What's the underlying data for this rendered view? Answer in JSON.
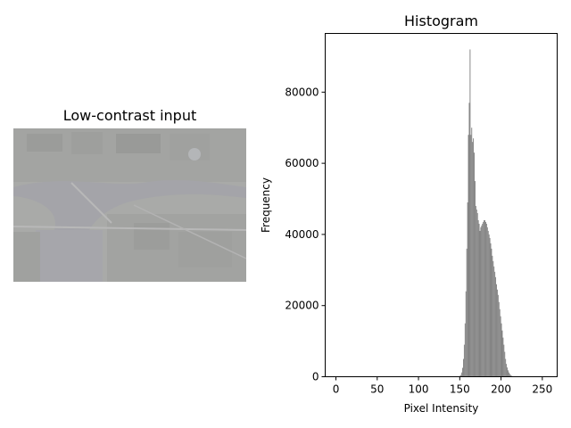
{
  "figure": {
    "left_panel": {
      "title": "Low-contrast input"
    },
    "right_panel": {
      "title": "Histogram"
    }
  },
  "chart_data": {
    "type": "bar",
    "title": "Histogram",
    "xlabel": "Pixel Intensity",
    "ylabel": "Frequency",
    "xlim": [
      -13,
      268
    ],
    "ylim": [
      0,
      96500
    ],
    "xticks": [
      0,
      50,
      100,
      150,
      200,
      250
    ],
    "yticks": [
      0,
      20000,
      40000,
      60000,
      80000
    ],
    "grid": false,
    "bar_color": "#808080",
    "bins": [
      [
        150,
        300
      ],
      [
        151,
        500
      ],
      [
        152,
        1200
      ],
      [
        153,
        2500
      ],
      [
        154,
        5000
      ],
      [
        155,
        9000
      ],
      [
        156,
        15000
      ],
      [
        157,
        24000
      ],
      [
        158,
        36000
      ],
      [
        159,
        49000
      ],
      [
        160,
        68000
      ],
      [
        161,
        77000
      ],
      [
        162,
        92000
      ],
      [
        163,
        68000
      ],
      [
        164,
        70000
      ],
      [
        165,
        66000
      ],
      [
        166,
        67000
      ],
      [
        167,
        63000
      ],
      [
        168,
        55000
      ],
      [
        169,
        48000
      ],
      [
        170,
        47000
      ],
      [
        171,
        46000
      ],
      [
        172,
        44000
      ],
      [
        173,
        43000
      ],
      [
        174,
        41000
      ],
      [
        175,
        42000
      ],
      [
        176,
        42500
      ],
      [
        177,
        43000
      ],
      [
        178,
        43500
      ],
      [
        179,
        44000
      ],
      [
        180,
        44000
      ],
      [
        181,
        43500
      ],
      [
        182,
        43000
      ],
      [
        183,
        42000
      ],
      [
        184,
        41000
      ],
      [
        185,
        40000
      ],
      [
        186,
        39000
      ],
      [
        187,
        37500
      ],
      [
        188,
        36000
      ],
      [
        189,
        34000
      ],
      [
        190,
        32500
      ],
      [
        191,
        31000
      ],
      [
        192,
        29500
      ],
      [
        193,
        28000
      ],
      [
        194,
        26000
      ],
      [
        195,
        24500
      ],
      [
        196,
        23000
      ],
      [
        197,
        21000
      ],
      [
        198,
        19000
      ],
      [
        199,
        17000
      ],
      [
        200,
        15000
      ],
      [
        201,
        13000
      ],
      [
        202,
        11000
      ],
      [
        203,
        9000
      ],
      [
        204,
        7000
      ],
      [
        205,
        5000
      ],
      [
        206,
        3600
      ],
      [
        207,
        2600
      ],
      [
        208,
        1800
      ],
      [
        209,
        1200
      ],
      [
        210,
        800
      ],
      [
        211,
        500
      ],
      [
        212,
        300
      ],
      [
        213,
        180
      ],
      [
        214,
        100
      ],
      [
        215,
        60
      ]
    ]
  }
}
